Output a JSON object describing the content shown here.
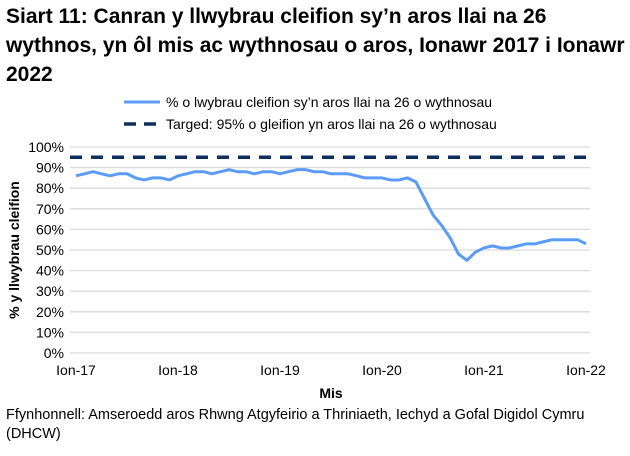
{
  "chart_data": {
    "type": "line",
    "title": "Siart 11: Canran y llwybrau cleifion sy’n aros llai na 26 wythnos, yn ôl mis ac wythnosau o aros, Ionawr 2017 i Ionawr 2022",
    "xlabel": "Mis",
    "ylabel": "% y llwybrau cleifion",
    "ylim": [
      0,
      100
    ],
    "yticks": [
      "0%",
      "10%",
      "20%",
      "30%",
      "40%",
      "50%",
      "60%",
      "70%",
      "80%",
      "90%",
      "100%"
    ],
    "xticks": [
      "Ion-17",
      "Ion-18",
      "Ion-19",
      "Ion-20",
      "Ion-21",
      "Ion-22"
    ],
    "grid": true,
    "legend": "top-right",
    "series": [
      {
        "name": "% o lwybrau cleifion sy’n aros llai na 26 o wythnosau",
        "color": "#5b9bf8",
        "style": "solid",
        "values": [
          86,
          87,
          88,
          87,
          86,
          87,
          87,
          85,
          84,
          85,
          85,
          84,
          86,
          87,
          88,
          88,
          87,
          88,
          89,
          88,
          88,
          87,
          88,
          88,
          87,
          88,
          89,
          89,
          88,
          88,
          87,
          87,
          87,
          86,
          85,
          85,
          85,
          84,
          84,
          85,
          83,
          75,
          67,
          62,
          56,
          48,
          45,
          49,
          51,
          52,
          51,
          51,
          52,
          53,
          53,
          54,
          55,
          55,
          55,
          55,
          53
        ]
      },
      {
        "name": "Targed: 95% o gleifion yn aros llai na 26 o wythnosau",
        "color": "#0d2e5f",
        "style": "dashed",
        "values": [
          95
        ]
      }
    ]
  },
  "source": "Ffynhonnell: Amseroedd aros Rhwng Atgyfeirio a Thriniaeth, Iechyd a Gofal Digidol Cymru (DHCW)"
}
